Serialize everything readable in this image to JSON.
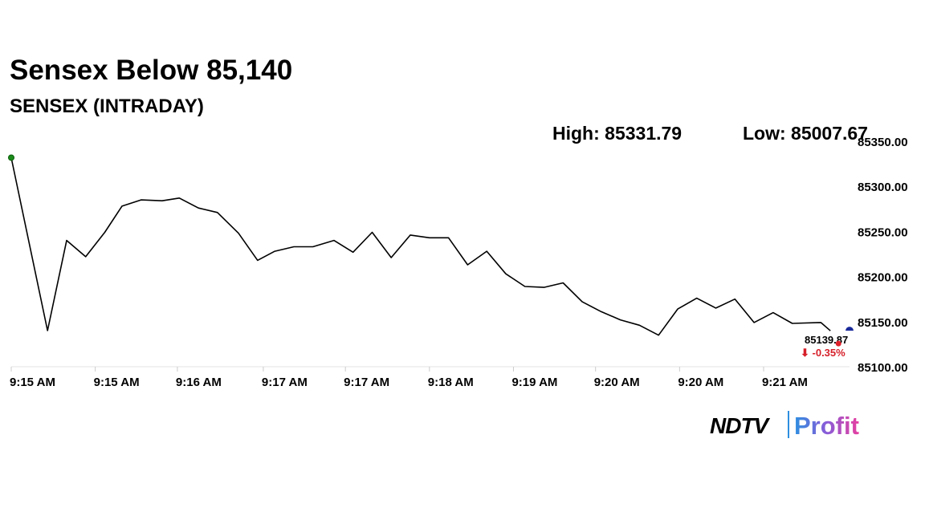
{
  "chart_data": {
    "type": "line",
    "title": "Sensex Below 85,140",
    "subtitle": "SENSEX (INTRADAY)",
    "high_label": "High: 85331.79",
    "low_label": "Low: 85007.67",
    "annotations": [
      "85139.87",
      "⬇ -0.35%"
    ],
    "color": "#000000",
    "x": [
      0,
      1.9,
      2.9,
      3.9,
      4.9,
      5.8,
      6.8,
      7.9,
      8.8,
      9.8,
      10.8,
      11.9,
      12.9,
      13.8,
      14.8,
      15.8,
      16.9,
      17.9,
      18.9,
      19.9,
      20.9,
      21.9,
      22.9,
      23.9,
      24.9,
      25.9,
      26.9,
      27.9,
      28.9,
      29.9,
      30.9,
      31.9,
      32.9,
      33.9,
      34.9,
      35.9,
      36.9,
      37.9,
      38.9,
      39.9,
      40.9,
      42.4,
      42.9
    ],
    "values": [
      85331.79,
      85140,
      85240,
      85222,
      85249,
      85278,
      85285,
      85284,
      85287,
      85276,
      85271,
      85248,
      85218,
      85228,
      85233,
      85233,
      85240,
      85227,
      85249,
      85221,
      85246,
      85243,
      85243,
      85213,
      85228,
      85203,
      85189,
      85188,
      85193,
      85172,
      85161,
      85152,
      85146,
      85135,
      85164,
      85176,
      85165,
      85175,
      85149,
      85160,
      85148,
      85149,
      85139.87
    ],
    "xlim": [
      0,
      43.9
    ],
    "xticks": [
      {
        "value": 0,
        "label": "9:15 AM"
      },
      {
        "value": 4.4,
        "label": "9:15 AM"
      },
      {
        "value": 8.7,
        "label": "9:16 AM"
      },
      {
        "value": 13.2,
        "label": "9:17 AM"
      },
      {
        "value": 17.5,
        "label": "9:17 AM"
      },
      {
        "value": 21.9,
        "label": "9:18 AM"
      },
      {
        "value": 26.3,
        "label": "9:19 AM"
      },
      {
        "value": 30.6,
        "label": "9:20 AM"
      },
      {
        "value": 35,
        "label": "9:20 AM"
      },
      {
        "value": 39.4,
        "label": "9:21 AM"
      }
    ],
    "ylim": [
      85100,
      85350
    ],
    "yticks": [
      {
        "value": 85100,
        "label": "85100.00"
      },
      {
        "value": 85150,
        "label": "85150.00"
      },
      {
        "value": 85200,
        "label": "85200.00"
      },
      {
        "value": 85250,
        "label": "85250.00"
      },
      {
        "value": 85300,
        "label": "85300.00"
      },
      {
        "value": 85350,
        "label": "85350.00"
      }
    ]
  },
  "logo": {
    "brand": "NDTV",
    "product": "Profit"
  }
}
